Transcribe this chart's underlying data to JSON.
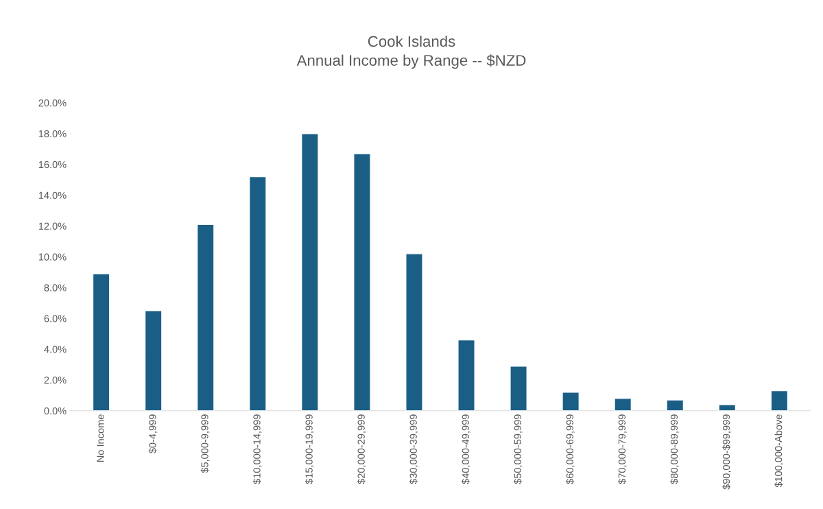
{
  "chart_data": {
    "type": "bar",
    "title": "Cook Islands\nAnnual Income by Range -- $NZD",
    "categories": [
      "No Income",
      "$0-4,999",
      "$5,000-9,999",
      "$10,000-14,999",
      "$15,000-19,999",
      "$20,000-29,999",
      "$30,000-39,999",
      "$40,000-49,999",
      "$50,000-59,999",
      "$60,000-69,999",
      "$70,000-79,999",
      "$80,000-89,999",
      "$90,000-$99,999",
      "$100,000-Above"
    ],
    "values": [
      8.9,
      6.5,
      12.1,
      15.2,
      18.0,
      16.7,
      10.2,
      4.6,
      2.9,
      1.2,
      0.8,
      0.7,
      0.4,
      1.3
    ],
    "color": "#1a5e85",
    "ylim": [
      0,
      20
    ],
    "yticks": [
      {
        "value": 0,
        "label": "0.0%"
      },
      {
        "value": 2,
        "label": "2.0%"
      },
      {
        "value": 4,
        "label": "4.0%"
      },
      {
        "value": 6,
        "label": "6.0%"
      },
      {
        "value": 8,
        "label": "8.0%"
      },
      {
        "value": 10,
        "label": "10.0%"
      },
      {
        "value": 12,
        "label": "12.0%"
      },
      {
        "value": 14,
        "label": "14.0%"
      },
      {
        "value": 16,
        "label": "16.0%"
      },
      {
        "value": 18,
        "label": "18.0%"
      },
      {
        "value": 20,
        "label": "20.0%"
      }
    ],
    "grid": false,
    "legend": false
  }
}
